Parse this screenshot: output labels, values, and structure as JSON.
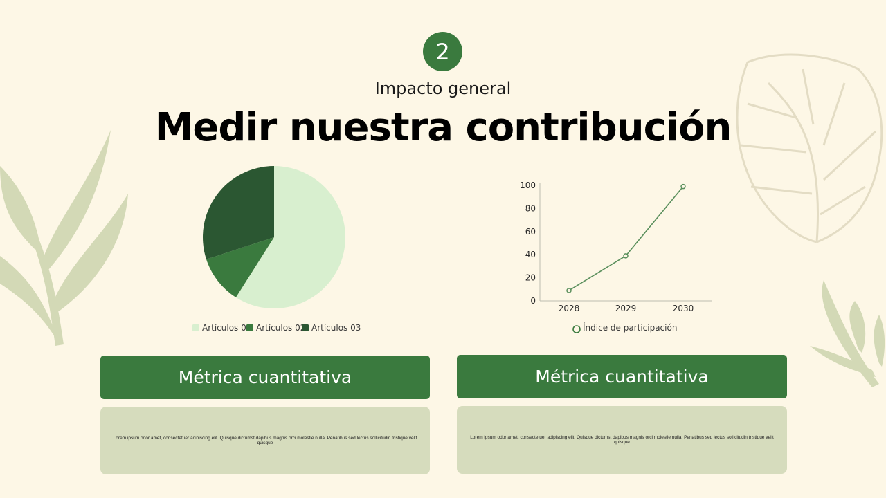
{
  "slide": {
    "number": "2",
    "subtitle": "Impacto general",
    "title": "Medir nuestra contribución"
  },
  "colors": {
    "background": "#fdf7e6",
    "accent": "#3a7a3e",
    "card": "#d6dcbd"
  },
  "chart_data": [
    {
      "type": "pie",
      "categories": [
        "Artículos 01",
        "Artículos 02",
        "Artículos 03"
      ],
      "values": [
        59,
        11,
        30
      ],
      "colors": [
        "#d8efcf",
        "#3a7a3e",
        "#2b5732"
      ],
      "legend": "bottom"
    },
    {
      "type": "line",
      "x": [
        "2028",
        "2029",
        "2030"
      ],
      "series": [
        {
          "name": "Índice de participación",
          "values": [
            9,
            39,
            99
          ]
        }
      ],
      "yticks": [
        "0",
        "20",
        "40",
        "60",
        "80",
        "100"
      ],
      "ylim": [
        0,
        100
      ],
      "legend": "bottom",
      "color": "#5a8f5c"
    }
  ],
  "cards": [
    {
      "title": "Métrica cuantitativa",
      "text": "Lorem ipsum odor amet, consectetuer adipiscing elit. Quisque dictumst dapibus magnis orci molestie nulla. Penatibus sed lectus sollicitudin tristique velit quisque"
    },
    {
      "title": "Métrica cuantitativa",
      "text": "Lorem ipsum odor amet, consectetuer adipiscing elit. Quisque dictumst dapibus magnis orci molestie nulla. Penatibus sed lectus sollicitudin tristique velit quisque"
    }
  ]
}
